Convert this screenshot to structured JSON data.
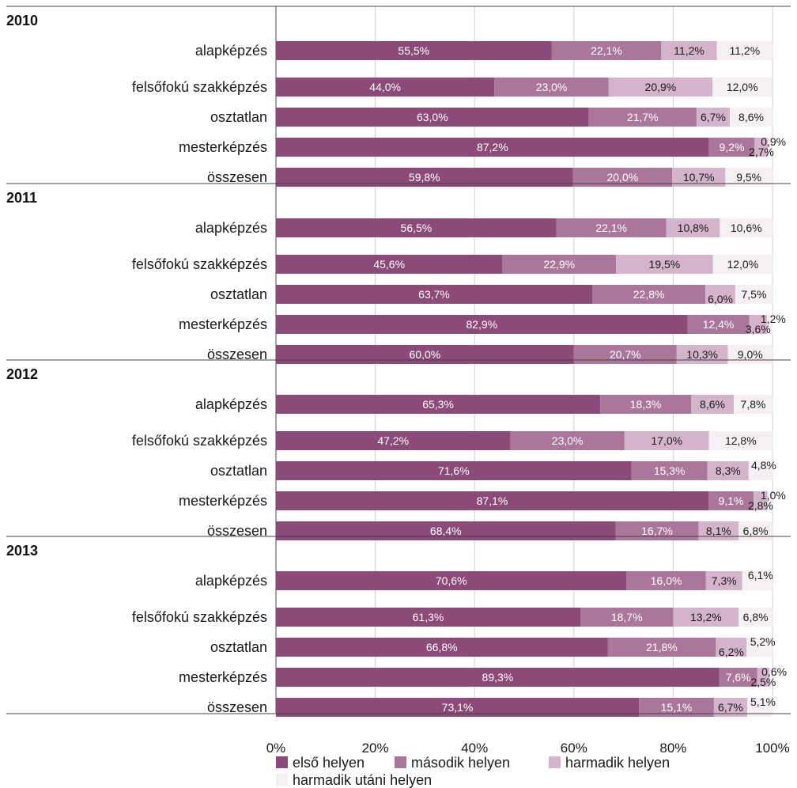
{
  "chart_data": {
    "type": "bar",
    "orientation": "horizontal",
    "stacked": true,
    "x_ticks": [
      "0%",
      "20%",
      "40%",
      "60%",
      "80%",
      "100%"
    ],
    "xlim": [
      0,
      100
    ],
    "legend_position": "bottom",
    "series": [
      {
        "name": "első helyen",
        "color": "#8c4a78"
      },
      {
        "name": "második helyen",
        "color": "#aa7699"
      },
      {
        "name": "harmadik helyen",
        "color": "#d3b4ca"
      },
      {
        "name": "harmadik utáni helyen",
        "color": "#f6eff4"
      }
    ],
    "groups": [
      {
        "year": "2010",
        "rows": [
          {
            "label": "alapképzés",
            "values": [
              55.5,
              22.1,
              11.2,
              11.2
            ],
            "texts": [
              "55,5%",
              "22,1%",
              "11,2%",
              "11,2%"
            ]
          },
          {
            "label": "felsőfokú szakképzés",
            "values": [
              44.0,
              23.0,
              20.9,
              12.0
            ],
            "texts": [
              "44,0%",
              "23,0%",
              "20,9%",
              "12,0%"
            ]
          },
          {
            "label": "osztatlan",
            "values": [
              63.0,
              21.7,
              6.7,
              8.6
            ],
            "texts": [
              "63,0%",
              "21,7%",
              "6,7%",
              "8,6%"
            ]
          },
          {
            "label": "mesterképzés",
            "values": [
              87.2,
              9.2,
              2.7,
              0.9
            ],
            "texts": [
              "87,2%",
              "9,2%",
              "2,7%",
              "0,9%"
            ]
          },
          {
            "label": "összesen",
            "values": [
              59.8,
              20.0,
              10.7,
              9.5
            ],
            "texts": [
              "59,8%",
              "20,0%",
              "10,7%",
              "9,5%"
            ]
          }
        ]
      },
      {
        "year": "2011",
        "rows": [
          {
            "label": "alapképzés",
            "values": [
              56.5,
              22.1,
              10.8,
              10.6
            ],
            "texts": [
              "56,5%",
              "22,1%",
              "10,8%",
              "10,6%"
            ]
          },
          {
            "label": "felsőfokú szakképzés",
            "values": [
              45.6,
              22.9,
              19.5,
              12.0
            ],
            "texts": [
              "45,6%",
              "22,9%",
              "19,5%",
              "12,0%"
            ]
          },
          {
            "label": "osztatlan",
            "values": [
              63.7,
              22.8,
              6.0,
              7.5
            ],
            "texts": [
              "63,7%",
              "22,8%",
              "6,0%",
              "7,5%"
            ]
          },
          {
            "label": "mesterképzés",
            "values": [
              82.9,
              12.4,
              3.6,
              1.2
            ],
            "texts": [
              "82,9%",
              "12,4%",
              "3,6%",
              "1,2%"
            ]
          },
          {
            "label": "összesen",
            "values": [
              60.0,
              20.7,
              10.3,
              9.0
            ],
            "texts": [
              "60,0%",
              "20,7%",
              "10,3%",
              "9,0%"
            ]
          }
        ]
      },
      {
        "year": "2012",
        "rows": [
          {
            "label": "alapképzés",
            "values": [
              65.3,
              18.3,
              8.6,
              7.8
            ],
            "texts": [
              "65,3%",
              "18,3%",
              "8,6%",
              "7,8%"
            ]
          },
          {
            "label": "felsőfokú szakképzés",
            "values": [
              47.2,
              23.0,
              17.0,
              12.8
            ],
            "texts": [
              "47,2%",
              "23,0%",
              "17,0%",
              "12,8%"
            ]
          },
          {
            "label": "osztatlan",
            "values": [
              71.6,
              15.3,
              8.3,
              4.8
            ],
            "texts": [
              "71,6%",
              "15,3%",
              "8,3%",
              "4,8%"
            ]
          },
          {
            "label": "mesterképzés",
            "values": [
              87.1,
              9.1,
              2.8,
              1.0
            ],
            "texts": [
              "87,1%",
              "9,1%",
              "2,8%",
              "1,0%"
            ]
          },
          {
            "label": "összesen",
            "values": [
              68.4,
              16.7,
              8.1,
              6.8
            ],
            "texts": [
              "68,4%",
              "16,7%",
              "8,1%",
              "6,8%"
            ]
          }
        ]
      },
      {
        "year": "2013",
        "rows": [
          {
            "label": "alapképzés",
            "values": [
              70.6,
              16.0,
              7.3,
              6.1
            ],
            "texts": [
              "70,6%",
              "16,0%",
              "7,3%",
              "6,1%"
            ]
          },
          {
            "label": "felsőfokú szakképzés",
            "values": [
              61.3,
              18.7,
              13.2,
              6.8
            ],
            "texts": [
              "61,3%",
              "18,7%",
              "13,2%",
              "6,8%"
            ]
          },
          {
            "label": "osztatlan",
            "values": [
              66.8,
              21.8,
              6.2,
              5.2
            ],
            "texts": [
              "66,8%",
              "21,8%",
              "6,2%",
              "5,2%"
            ]
          },
          {
            "label": "mesterképzés",
            "values": [
              89.3,
              7.6,
              2.5,
              0.6
            ],
            "texts": [
              "89,3%",
              "7,6%",
              "2,5%",
              "0,6%"
            ]
          },
          {
            "label": "összesen",
            "values": [
              73.1,
              15.1,
              6.7,
              5.1
            ],
            "texts": [
              "73,1%",
              "15,1%",
              "6,7%",
              "5,1%"
            ]
          }
        ]
      }
    ]
  }
}
